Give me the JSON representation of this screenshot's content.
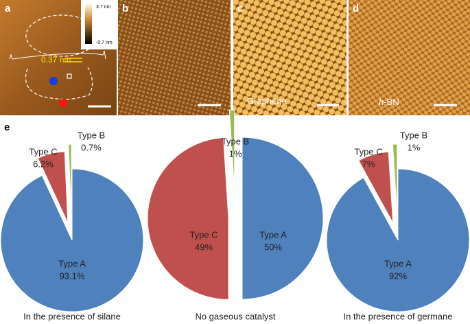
{
  "panels": [
    {
      "label": "a"
    },
    {
      "label": "b"
    },
    {
      "label": "c"
    },
    {
      "label": "d"
    }
  ],
  "colorbar": {
    "max": "3.7 nm",
    "min": "-0.7 nm"
  },
  "profile_annotation": "0.37 nm",
  "c_caption": "Graphene",
  "d_caption": {
    "italic": "h",
    "rest": "-BN"
  },
  "e_label": "e",
  "chart_data": [
    {
      "type": "pie",
      "title": "In the presence of silane",
      "categories": [
        "Type A",
        "Type C",
        "Type B"
      ],
      "values": [
        93.1,
        6.2,
        0.7
      ],
      "value_labels": [
        "93.1%",
        "6.2%",
        "0.7%"
      ],
      "colors": [
        "#4f81bd",
        "#c0504d",
        "#9bbb59"
      ]
    },
    {
      "type": "pie",
      "title": "No gaseous catalyst",
      "categories": [
        "Type A",
        "Type C",
        "Type B"
      ],
      "values": [
        50,
        49,
        1
      ],
      "value_labels": [
        "50%",
        "49%",
        "1%"
      ],
      "colors": [
        "#4f81bd",
        "#c0504d",
        "#9bbb59"
      ]
    },
    {
      "type": "pie",
      "title": "In the presence of germane",
      "categories": [
        "Type A",
        "Type C",
        "Type B"
      ],
      "values": [
        92,
        7,
        1
      ],
      "value_labels": [
        "92%",
        "7%",
        "1%"
      ],
      "colors": [
        "#4f81bd",
        "#c0504d",
        "#9bbb59"
      ]
    }
  ]
}
